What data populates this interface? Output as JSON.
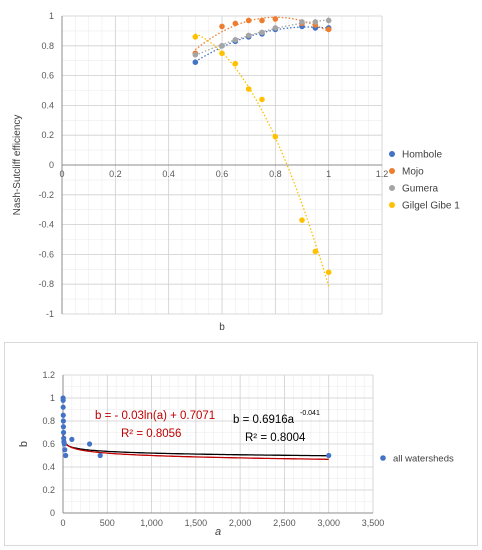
{
  "chart_data": [
    {
      "type": "scatter",
      "xlabel": "b",
      "ylabel": "Nash-Sutcliff efficiency",
      "xlim": [
        0,
        1.2
      ],
      "ylim": [
        -1,
        1
      ],
      "x_ticks": [
        "0",
        "0.2",
        "0.4",
        "0.6",
        "0.8",
        "1",
        "1.2"
      ],
      "y_ticks": [
        "1",
        "0.8",
        "0.6",
        "0.4",
        "0.2",
        "0",
        "-0.2",
        "-0.4",
        "-0.6",
        "-0.8",
        "-1"
      ],
      "grid": true,
      "legend_position": "right",
      "colors": {
        "Hombole": "#4472c4",
        "Mojo": "#ed7d31",
        "Gumera": "#a5a5a5",
        "Gilgel Gibe 1": "#ffc000"
      },
      "series": [
        {
          "name": "Hombole",
          "x": [
            0.5,
            0.6,
            0.65,
            0.7,
            0.75,
            0.8,
            0.9,
            0.95,
            1.0
          ],
          "y": [
            0.69,
            0.8,
            0.83,
            0.86,
            0.88,
            0.91,
            0.93,
            0.92,
            0.92
          ]
        },
        {
          "name": "Mojo",
          "x": [
            0.5,
            0.6,
            0.65,
            0.7,
            0.75,
            0.8,
            0.9,
            0.95,
            1.0
          ],
          "y": [
            0.75,
            0.93,
            0.95,
            0.97,
            0.97,
            0.98,
            0.95,
            0.94,
            0.91
          ]
        },
        {
          "name": "Gumera",
          "x": [
            0.5,
            0.6,
            0.65,
            0.7,
            0.75,
            0.8,
            0.9,
            0.95,
            1.0
          ],
          "y": [
            0.74,
            0.8,
            0.84,
            0.87,
            0.89,
            0.92,
            0.96,
            0.96,
            0.97
          ]
        },
        {
          "name": "Gilgel Gibe 1",
          "x": [
            0.5,
            0.6,
            0.65,
            0.7,
            0.75,
            0.8,
            0.9,
            0.95,
            1.0
          ],
          "y": [
            0.86,
            0.75,
            0.68,
            0.51,
            0.44,
            0.19,
            -0.37,
            -0.58,
            -0.72
          ]
        }
      ]
    },
    {
      "type": "scatter",
      "xlabel": "a",
      "ylabel": "b",
      "xlim": [
        0,
        3500
      ],
      "ylim": [
        0,
        1.2
      ],
      "x_ticks": [
        "0",
        "500",
        "1,000",
        "1,500",
        "2,000",
        "2,500",
        "3,000",
        "3,500"
      ],
      "y_ticks": [
        "1.2",
        "1",
        "0.8",
        "0.6",
        "0.4",
        "0.2",
        "0"
      ],
      "grid": true,
      "legend_position": "right",
      "colors": {
        "points": "#4472c4",
        "log_fit": "#c00000",
        "power_fit": "#000000"
      },
      "series": [
        {
          "name": "all watersheds",
          "x": [
            1,
            1.5,
            2,
            3,
            4,
            5,
            6,
            8,
            10,
            15,
            20,
            30,
            100,
            300,
            420,
            3000
          ],
          "y": [
            1.0,
            0.98,
            0.92,
            0.85,
            0.8,
            0.75,
            0.7,
            0.65,
            0.62,
            0.6,
            0.55,
            0.5,
            0.64,
            0.6,
            0.5,
            0.5
          ]
        }
      ],
      "annotations": {
        "log_equation": "b = - 0.03ln(a) + 0.7071",
        "log_r2": "R² = 0.8056",
        "power_equation_base": "b = 0.6916a",
        "power_equation_exp": "-0.041",
        "power_r2": "R² = 0.8004"
      }
    }
  ]
}
